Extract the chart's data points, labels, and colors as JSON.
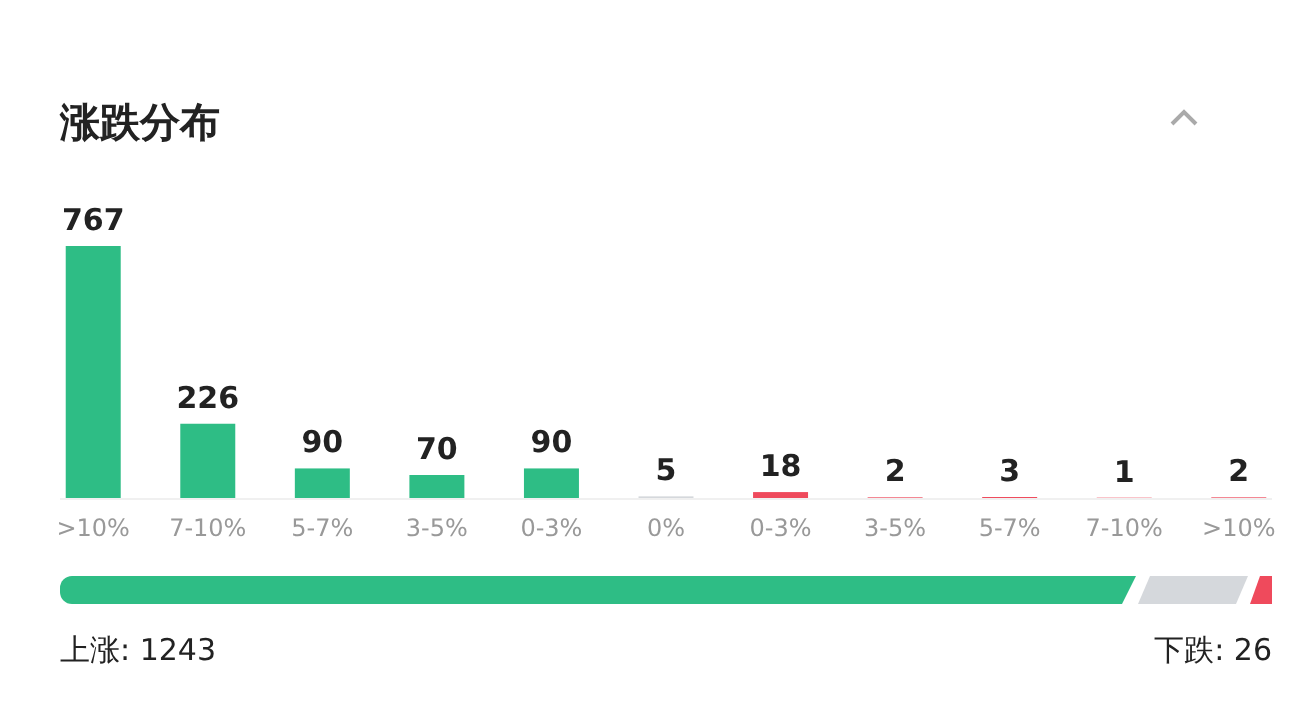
{
  "chart_data": {
    "type": "bar",
    "title": "涨跌分布",
    "categories": [
      ">10%",
      "7-10%",
      "5-7%",
      "3-5%",
      "0-3%",
      "0%",
      "0-3%",
      "3-5%",
      "5-7%",
      "7-10%",
      ">10%"
    ],
    "values": [
      767,
      226,
      90,
      70,
      90,
      5,
      18,
      2,
      3,
      1,
      2
    ],
    "colors": [
      "#2ebd85",
      "#2ebd85",
      "#2ebd85",
      "#2ebd85",
      "#2ebd85",
      "#d5d8dc",
      "#ef4a5c",
      "#ef4a5c",
      "#ef4a5c",
      "#ef4a5c",
      "#ef4a5c"
    ],
    "data_labels": true,
    "annotations": [
      "上涨: 1243",
      "下跌: 26"
    ]
  }
}
